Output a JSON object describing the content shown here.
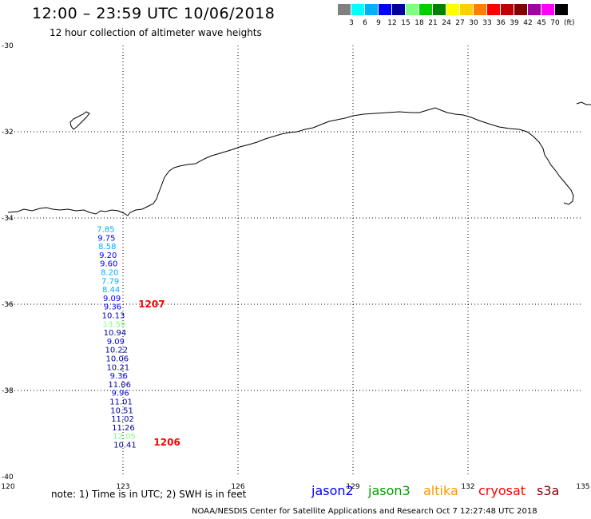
{
  "header": {
    "title": "12:00 – 23:59 UTC 10/06/2018",
    "subtitle": "12 hour collection of altimeter wave heights"
  },
  "color_scale": {
    "unit": "(ft)",
    "swatches": [
      {
        "color": "#808080",
        "label": ""
      },
      {
        "color": "#00ffff",
        "label": "3"
      },
      {
        "color": "#00b0ff",
        "label": "6"
      },
      {
        "color": "#0000ff",
        "label": "9"
      },
      {
        "color": "#0000a0",
        "label": "12"
      },
      {
        "color": "#80ff80",
        "label": "15"
      },
      {
        "color": "#00d000",
        "label": "18"
      },
      {
        "color": "#008000",
        "label": "21"
      },
      {
        "color": "#ffff00",
        "label": "24"
      },
      {
        "color": "#ffd000",
        "label": "27"
      },
      {
        "color": "#ff8000",
        "label": "30"
      },
      {
        "color": "#ff0000",
        "label": "33"
      },
      {
        "color": "#c00000",
        "label": "36"
      },
      {
        "color": "#800000",
        "label": "39"
      },
      {
        "color": "#a000a0",
        "label": "42"
      },
      {
        "color": "#ff00ff",
        "label": "45"
      },
      {
        "color": "#000000",
        "label": "70"
      }
    ]
  },
  "map": {
    "lon_range": [
      120,
      135
    ],
    "lat_range": [
      -40,
      -30
    ],
    "lon_ticks": [
      "120",
      "123",
      "126",
      "129",
      "132",
      "135"
    ],
    "lat_ticks": [
      "-30",
      "-32",
      "-34",
      "-36",
      "-38",
      "-40"
    ],
    "observations": [
      {
        "lat": -34.25,
        "lon": 122.55,
        "label": "7.85",
        "color": "#00b0ff"
      },
      {
        "lat": -34.45,
        "lon": 122.57,
        "label": "9.75",
        "color": "#0000ff"
      },
      {
        "lat": -34.65,
        "lon": 122.59,
        "label": "8.58",
        "color": "#00b0ff"
      },
      {
        "lat": -34.85,
        "lon": 122.61,
        "label": "9.20",
        "color": "#0000ff"
      },
      {
        "lat": -35.05,
        "lon": 122.63,
        "label": "9.60",
        "color": "#0000ff"
      },
      {
        "lat": -35.25,
        "lon": 122.65,
        "label": "8.20",
        "color": "#00b0ff"
      },
      {
        "lat": -35.45,
        "lon": 122.67,
        "label": "7.79",
        "color": "#00b0ff"
      },
      {
        "lat": -35.65,
        "lon": 122.69,
        "label": "8.44",
        "color": "#00b0ff"
      },
      {
        "lat": -35.85,
        "lon": 122.71,
        "label": "9.09",
        "color": "#0000ff"
      },
      {
        "lat": -36.05,
        "lon": 122.73,
        "label": "9.36",
        "color": "#0000ff"
      },
      {
        "lat": -36.25,
        "lon": 122.75,
        "label": "10.13",
        "color": "#0000a0"
      },
      {
        "lat": -36.45,
        "lon": 122.77,
        "label": "13.59",
        "color": "#80ff80"
      },
      {
        "lat": -36.65,
        "lon": 122.79,
        "label": "10.94",
        "color": "#0000a0"
      },
      {
        "lat": -36.85,
        "lon": 122.81,
        "label": "9.09",
        "color": "#0000ff"
      },
      {
        "lat": -37.05,
        "lon": 122.83,
        "label": "10.22",
        "color": "#0000a0"
      },
      {
        "lat": -37.25,
        "lon": 122.85,
        "label": "10.06",
        "color": "#0000a0"
      },
      {
        "lat": -37.45,
        "lon": 122.87,
        "label": "10.21",
        "color": "#0000a0"
      },
      {
        "lat": -37.65,
        "lon": 122.89,
        "label": "9.36",
        "color": "#0000ff"
      },
      {
        "lat": -37.85,
        "lon": 122.91,
        "label": "11.06",
        "color": "#0000a0"
      },
      {
        "lat": -38.05,
        "lon": 122.93,
        "label": "9.96",
        "color": "#0000ff"
      },
      {
        "lat": -38.25,
        "lon": 122.95,
        "label": "11.01",
        "color": "#0000a0"
      },
      {
        "lat": -38.45,
        "lon": 122.97,
        "label": "10.51",
        "color": "#0000a0"
      },
      {
        "lat": -38.65,
        "lon": 122.99,
        "label": "11.02",
        "color": "#0000a0"
      },
      {
        "lat": -38.85,
        "lon": 123.01,
        "label": "11.26",
        "color": "#0000a0"
      },
      {
        "lat": -39.05,
        "lon": 123.03,
        "label": "12.05",
        "color": "#80ff80"
      },
      {
        "lat": -39.25,
        "lon": 123.05,
        "label": "10.41",
        "color": "#0000a0"
      }
    ],
    "time_labels": [
      {
        "lat": -36.0,
        "lon": 123.4,
        "label": "1207",
        "color": "#ff0000"
      },
      {
        "lat": -39.2,
        "lon": 123.8,
        "label": "1206",
        "color": "#ff0000"
      }
    ]
  },
  "footer": {
    "note": "note:  1) Time is in UTC;  2) SWH is in feet",
    "satellites": [
      {
        "name": "jason2",
        "color": "#0000ff"
      },
      {
        "name": "jason3",
        "color": "#00a000"
      },
      {
        "name": "altika",
        "color": "#ff9900"
      },
      {
        "name": "cryosat",
        "color": "#ff0000"
      },
      {
        "name": "s3a",
        "color": "#800000"
      }
    ],
    "credit": "NOAA/NESDIS Center for Satellite Applications and Research    Oct  7 12:27:48 UTC 2018"
  }
}
